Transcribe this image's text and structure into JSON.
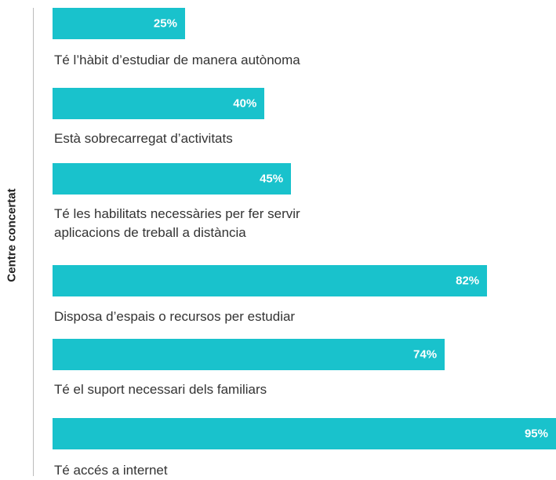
{
  "chart_data": {
    "type": "bar",
    "orientation": "horizontal",
    "y_label": "Centre concertat",
    "categories": [
      "Té l’hàbit d’estudiar de manera autònoma",
      "Està sobrecarregat d’activitats",
      "Té les habilitats necessàries per fer servir aplicacions de treball a distància",
      "Disposa d’espais o recursos per estudiar",
      "Té el suport necessari dels familiars",
      "Té accés a internet"
    ],
    "values": [
      25,
      40,
      45,
      82,
      74,
      95
    ],
    "value_labels": [
      "25%",
      "40%",
      "45%",
      "82%",
      "74%",
      "95%"
    ],
    "color": "#19c2cc"
  }
}
